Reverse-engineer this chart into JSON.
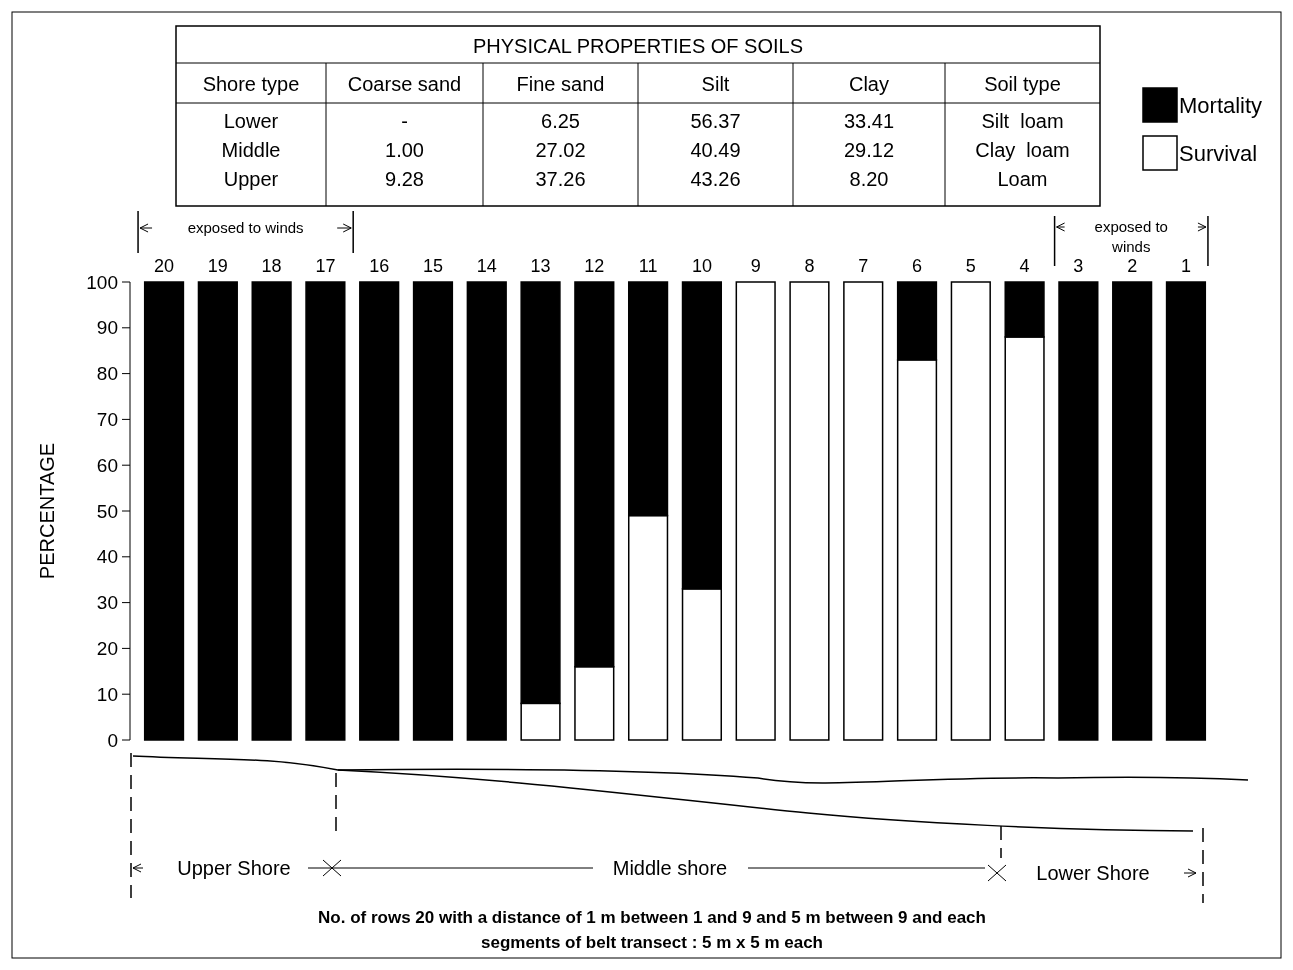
{
  "chart_data": [
    {
      "type": "other",
      "title": "PHYSICAL PROPERTIES OF SOILS",
      "categories": [
        "Shore type",
        "Coarse sand",
        "Fine sand",
        "Silt",
        "Clay",
        "Soil type"
      ],
      "cell_labels": [
        [
          "Lower",
          "-",
          "6.25",
          "56.37",
          "33.41",
          "Silt  loam"
        ],
        [
          "Middle",
          "1.00",
          "27.02",
          "40.49",
          "29.12",
          "Clay  loam"
        ],
        [
          "Upper",
          "9.28",
          "37.26",
          "43.26",
          "8.20",
          "Loam"
        ]
      ]
    },
    {
      "type": "bar",
      "stacked": true,
      "ylabel": "PERCENTAGE",
      "legend": "top right",
      "ylim": [
        0,
        100
      ],
      "yticks": [
        0,
        10,
        20,
        30,
        40,
        50,
        60,
        70,
        80,
        90,
        100
      ],
      "categories": [
        "20",
        "19",
        "18",
        "17",
        "16",
        "15",
        "14",
        "13",
        "12",
        "11",
        "10",
        "9",
        "8",
        "7",
        "6",
        "5",
        "4",
        "3",
        "2",
        "1"
      ],
      "series": [
        {
          "name": "Survival",
          "color": "#ffffff",
          "values": [
            0,
            0,
            0,
            0,
            0,
            0,
            0,
            8,
            16,
            49,
            33,
            100,
            100,
            100,
            83,
            100,
            88,
            0,
            0,
            0
          ]
        },
        {
          "name": "Mortality",
          "color": "#000000",
          "values": [
            100,
            100,
            100,
            100,
            100,
            100,
            100,
            92,
            84,
            51,
            67,
            0,
            0,
            0,
            17,
            0,
            12,
            100,
            100,
            100
          ]
        }
      ],
      "annotations": [
        "exposed to winds",
        "exposed to winds",
        "Upper Shore",
        "Middle shore",
        "Lower Shore",
        "No. of rows 20 with a distance of 1 m between 1 and 9 and 5 m between 9 and each segments of belt transect : 5 m x 5 m each"
      ]
    }
  ]
}
